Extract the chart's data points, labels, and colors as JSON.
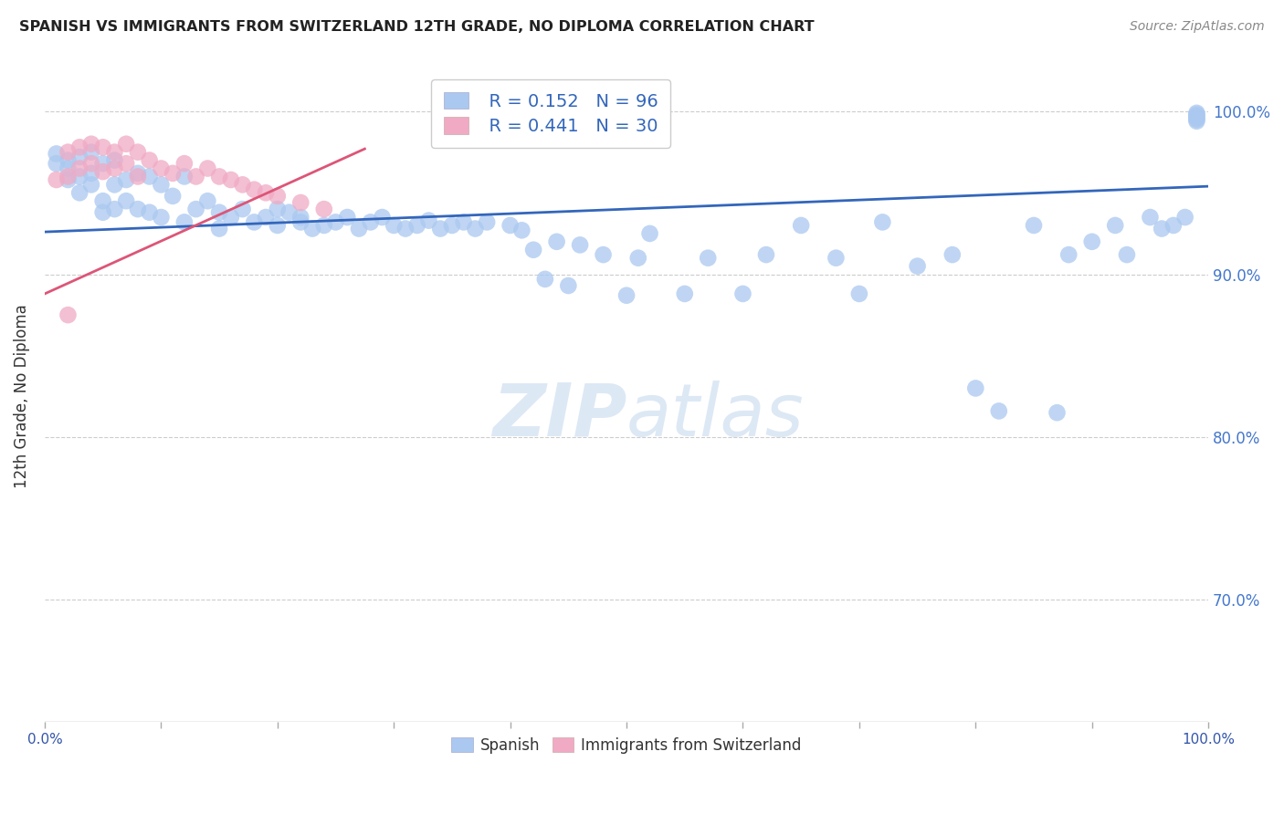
{
  "title": "SPANISH VS IMMIGRANTS FROM SWITZERLAND 12TH GRADE, NO DIPLOMA CORRELATION CHART",
  "source": "Source: ZipAtlas.com",
  "ylabel": "12th Grade, No Diploma",
  "ytick_labels": [
    "100.0%",
    "90.0%",
    "80.0%",
    "70.0%"
  ],
  "ytick_values": [
    1.0,
    0.9,
    0.8,
    0.7
  ],
  "xlim": [
    0.0,
    1.0
  ],
  "ylim": [
    0.625,
    1.025
  ],
  "legend_blue_label": "Spanish",
  "legend_pink_label": "Immigrants from Switzerland",
  "R_blue": 0.152,
  "N_blue": 96,
  "R_pink": 0.441,
  "N_pink": 30,
  "blue_color": "#aac8f0",
  "pink_color": "#f0aac4",
  "trend_blue_color": "#3366bb",
  "trend_pink_color": "#dd5577",
  "right_axis_color": "#4477cc",
  "watermark_zip": "ZIP",
  "watermark_atlas": "atlas",
  "blue_trend_x0": 0.0,
  "blue_trend_y0": 0.926,
  "blue_trend_x1": 1.0,
  "blue_trend_y1": 0.954,
  "pink_trend_x0": 0.0,
  "pink_trend_y0": 0.888,
  "pink_trend_x1": 0.275,
  "pink_trend_y1": 0.977,
  "blue_scatter_x": [
    0.01,
    0.01,
    0.02,
    0.02,
    0.02,
    0.03,
    0.03,
    0.03,
    0.04,
    0.04,
    0.04,
    0.05,
    0.05,
    0.05,
    0.06,
    0.06,
    0.06,
    0.07,
    0.07,
    0.08,
    0.08,
    0.09,
    0.09,
    0.1,
    0.1,
    0.11,
    0.12,
    0.12,
    0.13,
    0.14,
    0.15,
    0.15,
    0.16,
    0.17,
    0.18,
    0.19,
    0.2,
    0.2,
    0.21,
    0.22,
    0.22,
    0.23,
    0.24,
    0.25,
    0.26,
    0.27,
    0.28,
    0.29,
    0.3,
    0.31,
    0.32,
    0.33,
    0.34,
    0.35,
    0.36,
    0.37,
    0.38,
    0.4,
    0.41,
    0.42,
    0.43,
    0.44,
    0.45,
    0.46,
    0.48,
    0.5,
    0.51,
    0.52,
    0.55,
    0.57,
    0.6,
    0.62,
    0.65,
    0.68,
    0.7,
    0.72,
    0.75,
    0.78,
    0.8,
    0.82,
    0.85,
    0.87,
    0.88,
    0.9,
    0.92,
    0.93,
    0.95,
    0.96,
    0.97,
    0.98,
    0.99,
    0.99,
    0.99,
    0.99,
    0.99,
    0.99
  ],
  "blue_scatter_y": [
    0.974,
    0.968,
    0.97,
    0.965,
    0.958,
    0.972,
    0.96,
    0.95,
    0.975,
    0.962,
    0.955,
    0.968,
    0.945,
    0.938,
    0.97,
    0.955,
    0.94,
    0.958,
    0.945,
    0.962,
    0.94,
    0.96,
    0.938,
    0.955,
    0.935,
    0.948,
    0.96,
    0.932,
    0.94,
    0.945,
    0.938,
    0.928,
    0.935,
    0.94,
    0.932,
    0.935,
    0.94,
    0.93,
    0.938,
    0.932,
    0.935,
    0.928,
    0.93,
    0.932,
    0.935,
    0.928,
    0.932,
    0.935,
    0.93,
    0.928,
    0.93,
    0.933,
    0.928,
    0.93,
    0.932,
    0.928,
    0.932,
    0.93,
    0.927,
    0.915,
    0.897,
    0.92,
    0.893,
    0.918,
    0.912,
    0.887,
    0.91,
    0.925,
    0.888,
    0.91,
    0.888,
    0.912,
    0.93,
    0.91,
    0.888,
    0.932,
    0.905,
    0.912,
    0.83,
    0.816,
    0.93,
    0.815,
    0.912,
    0.92,
    0.93,
    0.912,
    0.935,
    0.928,
    0.93,
    0.935,
    0.999,
    0.998,
    0.997,
    0.996,
    0.995,
    0.994
  ],
  "pink_scatter_x": [
    0.01,
    0.02,
    0.02,
    0.03,
    0.03,
    0.04,
    0.04,
    0.05,
    0.05,
    0.06,
    0.06,
    0.07,
    0.07,
    0.08,
    0.08,
    0.09,
    0.1,
    0.11,
    0.12,
    0.13,
    0.14,
    0.15,
    0.16,
    0.17,
    0.18,
    0.19,
    0.2,
    0.22,
    0.24,
    0.02
  ],
  "pink_scatter_y": [
    0.958,
    0.975,
    0.96,
    0.978,
    0.965,
    0.98,
    0.968,
    0.978,
    0.963,
    0.975,
    0.965,
    0.98,
    0.968,
    0.975,
    0.96,
    0.97,
    0.965,
    0.962,
    0.968,
    0.96,
    0.965,
    0.96,
    0.958,
    0.955,
    0.952,
    0.95,
    0.948,
    0.944,
    0.94,
    0.875
  ]
}
